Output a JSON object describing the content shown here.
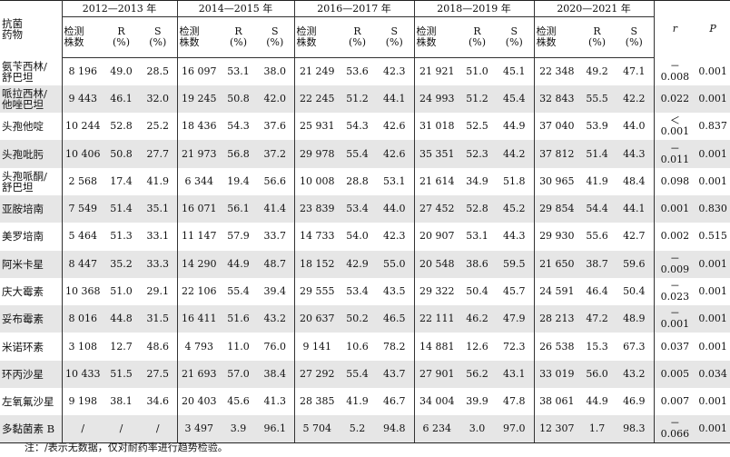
{
  "header": {
    "antibiotic_label": "抗菌\n药物",
    "year_groups": [
      "2012—2013 年",
      "2014—2015 年",
      "2016—2017 年",
      "2018—2019 年",
      "2020—2021 年"
    ],
    "sub_count": "检测\n株数",
    "sub_r": "R\n(%)",
    "sub_s": "S\n(%)",
    "r_label": "r",
    "p_label": "P"
  },
  "rows": [
    {
      "name": "氨苄西林/\n舒巴坦",
      "shade": false,
      "cells": [
        "8 196",
        "49.0",
        "28.5",
        "16 097",
        "53.1",
        "38.0",
        "21 249",
        "53.6",
        "42.3",
        "21 921",
        "51.0",
        "45.1",
        "22 348",
        "49.2",
        "47.1",
        "－0.008",
        "0.001"
      ]
    },
    {
      "name": "哌拉西林/\n他唑巴坦",
      "shade": true,
      "cells": [
        "9 443",
        "46.1",
        "32.0",
        "19 245",
        "50.8",
        "42.0",
        "22 245",
        "51.2",
        "44.1",
        "24 993",
        "51.2",
        "45.4",
        "32 843",
        "55.5",
        "42.2",
        "0.022",
        "0.001"
      ]
    },
    {
      "name": "头孢他啶",
      "shade": false,
      "cells": [
        "10 244",
        "52.8",
        "25.2",
        "18 436",
        "54.3",
        "37.6",
        "25 931",
        "54.3",
        "42.6",
        "31 018",
        "52.5",
        "44.9",
        "37 040",
        "53.9",
        "44.0",
        "＜0.001",
        "0.837"
      ]
    },
    {
      "name": "头孢吡肟",
      "shade": true,
      "cells": [
        "10 406",
        "50.8",
        "27.7",
        "21 973",
        "56.8",
        "37.2",
        "29 978",
        "55.4",
        "42.6",
        "35 351",
        "52.3",
        "44.2",
        "37 812",
        "51.4",
        "44.3",
        "－0.011",
        "0.001"
      ]
    },
    {
      "name": "头孢哌酮/\n舒巴坦",
      "shade": false,
      "cells": [
        "2 568",
        "17.4",
        "41.9",
        "6 344",
        "19.4",
        "56.6",
        "10 008",
        "28.8",
        "53.1",
        "21 614",
        "34.9",
        "51.8",
        "30 965",
        "41.9",
        "48.4",
        "0.098",
        "0.001"
      ]
    },
    {
      "name": "亚胺培南",
      "shade": true,
      "cells": [
        "7 549",
        "51.4",
        "35.1",
        "16 071",
        "56.1",
        "41.4",
        "23 839",
        "53.4",
        "44.0",
        "27 452",
        "52.8",
        "45.2",
        "29 854",
        "54.4",
        "44.1",
        "0.001",
        "0.830"
      ]
    },
    {
      "name": "美罗培南",
      "shade": false,
      "cells": [
        "5 464",
        "51.3",
        "33.1",
        "11 147",
        "57.9",
        "33.7",
        "14 733",
        "54.0",
        "42.3",
        "20 907",
        "53.1",
        "44.3",
        "29 930",
        "55.6",
        "42.7",
        "0.002",
        "0.515"
      ]
    },
    {
      "name": "阿米卡星",
      "shade": true,
      "cells": [
        "8 447",
        "35.2",
        "33.3",
        "14 290",
        "44.9",
        "48.7",
        "18 152",
        "42.9",
        "55.0",
        "20 548",
        "38.6",
        "59.5",
        "21 650",
        "38.7",
        "59.6",
        "－0.009",
        "0.001"
      ]
    },
    {
      "name": "庆大霉素",
      "shade": false,
      "cells": [
        "10 368",
        "51.0",
        "29.1",
        "22 106",
        "55.4",
        "39.4",
        "29 555",
        "53.4",
        "43.5",
        "29 322",
        "50.4",
        "45.7",
        "24 591",
        "46.4",
        "50.4",
        "－0.023",
        "0.001"
      ]
    },
    {
      "name": "妥布霉素",
      "shade": true,
      "cells": [
        "8 016",
        "44.8",
        "31.5",
        "16 411",
        "51.6",
        "43.2",
        "20 637",
        "50.2",
        "46.5",
        "22 111",
        "46.2",
        "47.9",
        "28 213",
        "47.2",
        "48.9",
        "－0.001",
        "0.001"
      ]
    },
    {
      "name": "米诺环素",
      "shade": false,
      "cells": [
        "3 108",
        "12.7",
        "48.6",
        "4 793",
        "11.0",
        "76.0",
        "9 141",
        "10.6",
        "78.2",
        "14 881",
        "12.6",
        "72.3",
        "26 538",
        "15.3",
        "67.3",
        "0.037",
        "0.001"
      ]
    },
    {
      "name": "环丙沙星",
      "shade": true,
      "cells": [
        "10 433",
        "51.5",
        "27.5",
        "21 693",
        "57.0",
        "38.4",
        "27 292",
        "55.4",
        "43.7",
        "27 901",
        "56.2",
        "43.1",
        "33 019",
        "56.0",
        "43.2",
        "0.005",
        "0.034"
      ]
    },
    {
      "name": "左氧氟沙星",
      "shade": false,
      "cells": [
        "9 198",
        "38.1",
        "34.6",
        "20 403",
        "45.6",
        "41.3",
        "28 385",
        "41.9",
        "46.7",
        "34 004",
        "39.9",
        "47.8",
        "38 061",
        "44.9",
        "46.9",
        "0.007",
        "0.001"
      ]
    },
    {
      "name": "多黏菌素 B",
      "shade": true,
      "cells": [
        "/",
        "/",
        "/",
        "3 497",
        "3.9",
        "96.1",
        "5 704",
        "5.2",
        "94.8",
        "6 234",
        "3.0",
        "97.0",
        "12 307",
        "1.7",
        "98.3",
        "－0.066",
        "0.001"
      ]
    }
  ],
  "note": "注：/表示无数据，仅对耐药率进行趋势检验。"
}
